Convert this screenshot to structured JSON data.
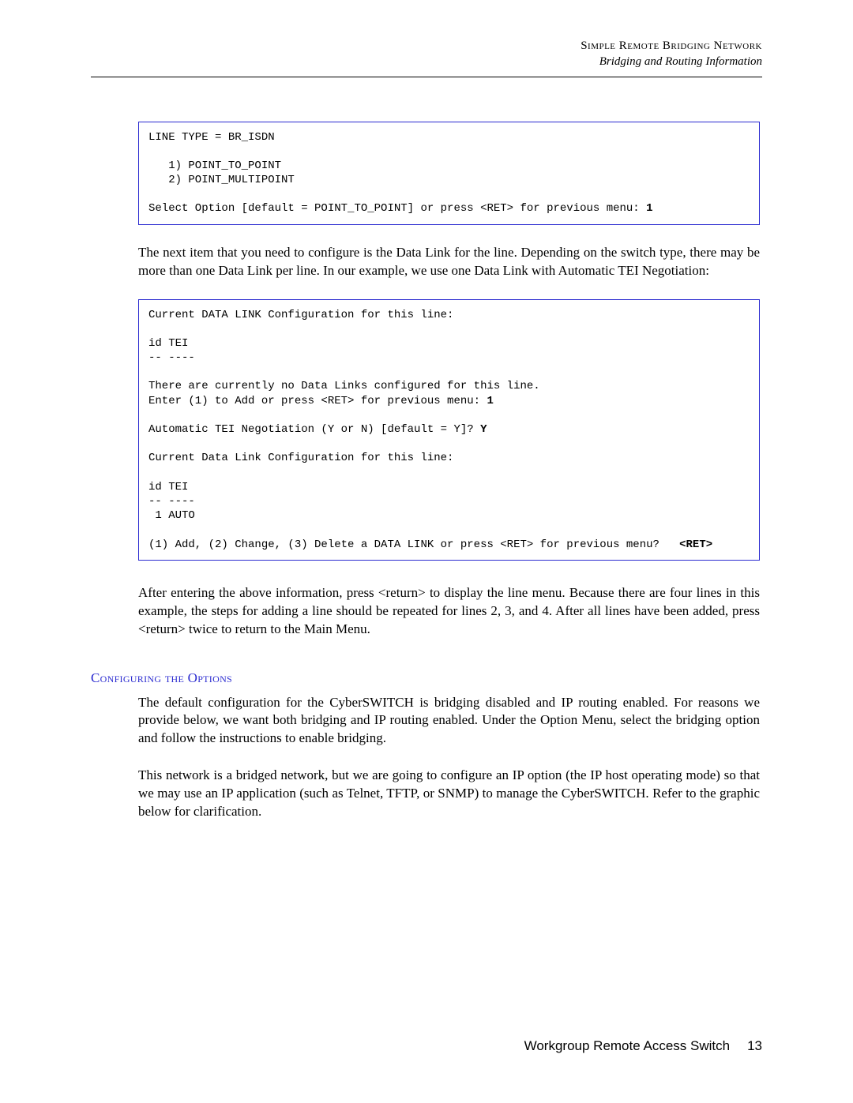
{
  "colors": {
    "box_border": "#2b2bd0",
    "subhead": "#2b2bd0",
    "text": "#000000",
    "background": "#ffffff",
    "rule": "#000000"
  },
  "typography": {
    "body_family": "Palatino Linotype, Book Antiqua, Palatino, Georgia, serif",
    "mono_family": "Courier New, Courier, monospace",
    "body_size_pt": 12,
    "mono_size_pt": 10,
    "subhead_smallcaps": true
  },
  "header": {
    "chapter": "Simple Remote Bridging Network",
    "section": "Bridging and Routing Information"
  },
  "code1": {
    "l1": "LINE TYPE = BR_ISDN",
    "l2": "",
    "l3": "   1) POINT_TO_POINT",
    "l4": "   2) POINT_MULTIPOINT",
    "l5": "",
    "l6a": "Select Option [default = POINT_TO_POINT] or press <RET> for previous menu: ",
    "l6b": "1"
  },
  "para1": "The next item that you need to configure is the Data Link for the line. Depending on the switch type, there may be more than one Data Link per line. In our example, we use one Data Link with Automatic TEI Negotiation:",
  "code2": {
    "l1": "Current DATA LINK Configuration for this line:",
    "l2": "",
    "l3": "id TEI",
    "l4": "-- ----",
    "l5": "",
    "l6": "There are currently no Data Links configured for this line.",
    "l7a": "Enter (1) to Add or press <RET> for previous menu: ",
    "l7b": "1",
    "l8": "",
    "l9a": "Automatic TEI Negotiation (Y or N) [default = Y]? ",
    "l9b": "Y",
    "l10": "",
    "l11": "Current Data Link Configuration for this line:",
    "l12": "",
    "l13": "id TEI",
    "l14": "-- ----",
    "l15": " 1 AUTO",
    "l16": "",
    "l17a": "(1) Add, (2) Change, (3) Delete a DATA LINK or press <RET> for previous menu?   ",
    "l17b": "<RET>"
  },
  "para2": "After entering the above information, press <return> to display the line menu. Because there are four lines in this example, the steps for adding a line should be repeated for lines 2, 3, and 4. After all lines have been added, press <return> twice to return to the Main Menu.",
  "subhead": "Configuring the Options",
  "para3": "The default configuration for the CyberSWITCH is bridging disabled and IP routing enabled. For reasons we provide below, we want both bridging and IP routing enabled. Under the Option Menu, select the bridging option and follow the instructions to enable bridging.",
  "para4": "This network is a bridged network, but we are going to configure an IP option (the IP host operating mode) so that we may use an IP application (such as Telnet, TFTP, or SNMP) to manage the CyberSWITCH. Refer to the graphic below for clarification.",
  "footer": {
    "product": "Workgroup Remote Access Switch",
    "page": "13"
  }
}
